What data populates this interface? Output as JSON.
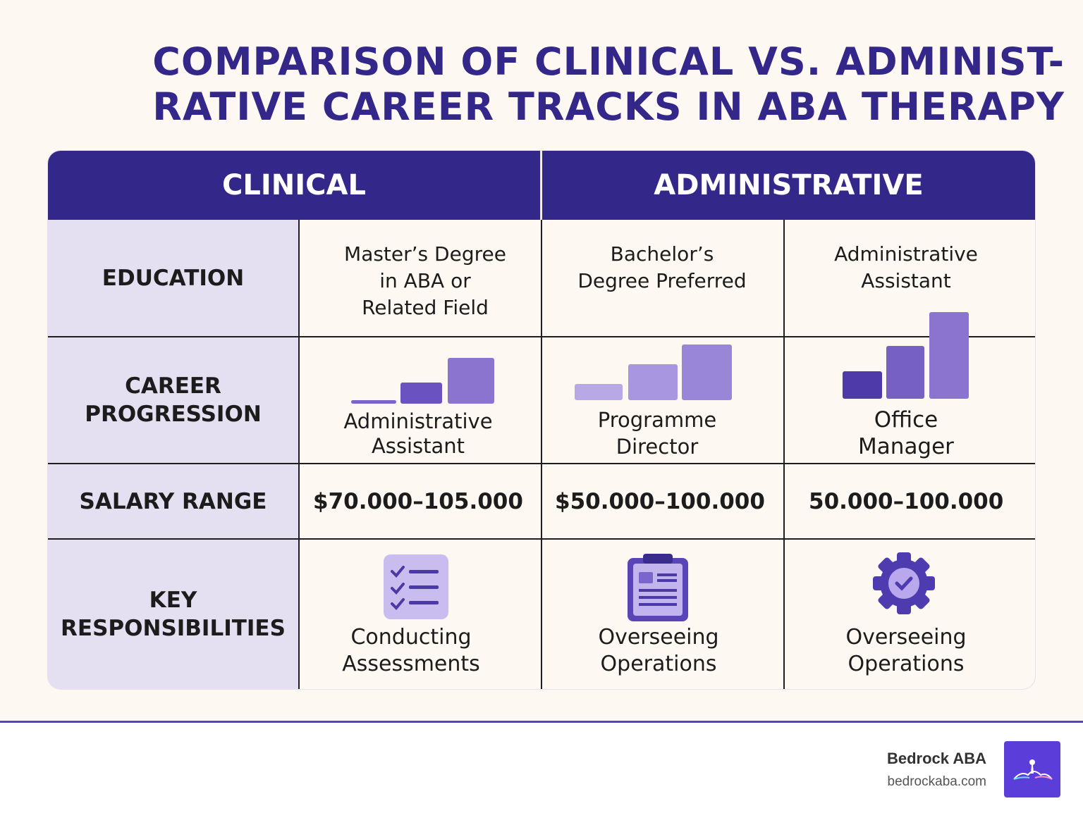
{
  "title": {
    "line1": "COMPARISON OF CLINICAL VS. ADMINIST-",
    "line2": "RATIVE CAREER TRACKS IN ABA THERAPY"
  },
  "headers": {
    "clinical": "CLINICAL",
    "administrative": "ADMINISTRATIVE"
  },
  "rows": {
    "education": "EDUCATION",
    "career_progression": "CAREER PROGRESSION",
    "salary_range": "SALARY RANGE",
    "key_responsibilities": "KEY RESPONSIBILITIES"
  },
  "education": {
    "col1": [
      "Master’s Degree",
      "in ABA or",
      "Related Field"
    ],
    "col2": [
      "Bachelor’s",
      "Degree Preferred"
    ],
    "col3": [
      "Administrative",
      "Assistant"
    ]
  },
  "progression": {
    "col1": [
      "Administrative",
      "Assistant"
    ],
    "col2": [
      "Programme",
      "Director"
    ],
    "col3": [
      "Office",
      "Manager"
    ]
  },
  "salary": {
    "col1": "$70.000–105.000",
    "col2": "$50.000–100.000",
    "col3": "50.000–100.000"
  },
  "responsibilities": {
    "col1": [
      "Conducting",
      "Assessments"
    ],
    "col2": [
      "Overseeing",
      "Operations"
    ],
    "col3": [
      "Overseeing",
      "Operations"
    ],
    "icons": [
      "checklist-icon",
      "clipboard-icon",
      "gear-check-icon"
    ]
  },
  "footer": {
    "brand": "Bedrock ABA",
    "url": "bedrockaba.com"
  },
  "colors": {
    "header": "#33288a",
    "label_bg": "#e5e0f1",
    "accent": "#5b3dd9"
  }
}
